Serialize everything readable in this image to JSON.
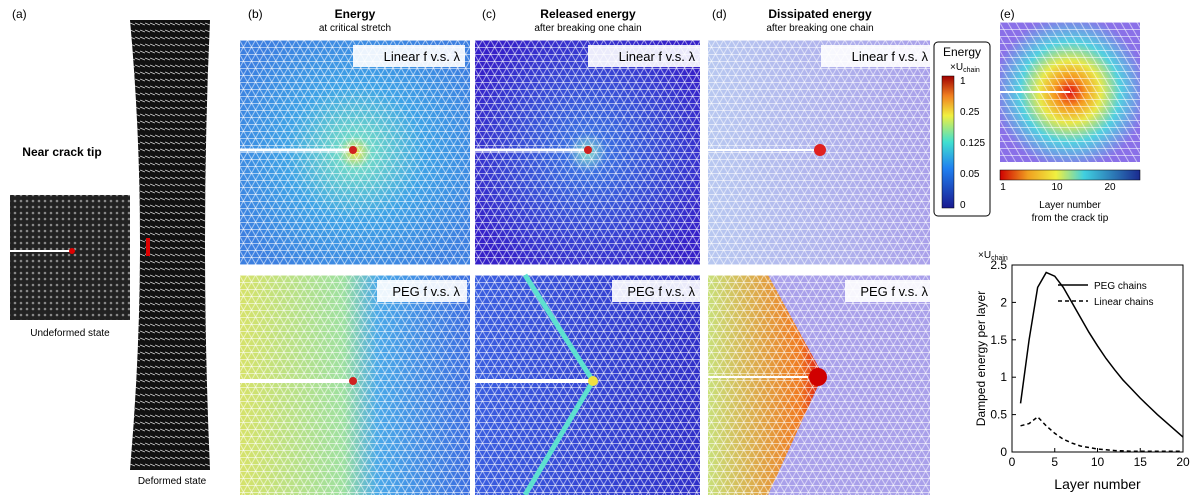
{
  "panel_labels": [
    "(a)",
    "(b)",
    "(c)",
    "(d)",
    "(e)"
  ],
  "panel_a": {
    "title": "Near crack tip",
    "undeformed": "Undeformed state",
    "deformed": "Deformed state"
  },
  "columns": [
    {
      "title": "Energy",
      "subtitle": "at critical stretch"
    },
    {
      "title": "Released energy",
      "subtitle": "after breaking one chain"
    },
    {
      "title": "Dissipated energy",
      "subtitle": "after breaking one chain"
    }
  ],
  "row_labels": [
    "Linear f v.s. λ",
    "PEG f v.s. λ"
  ],
  "energy_colorbar": {
    "title": "Energy",
    "unit_main": "×U",
    "unit_sub": "chain",
    "ticks": [
      "1",
      "0.25",
      "0.125",
      "0.05",
      "0"
    ]
  },
  "layer_colorbar": {
    "ticks": [
      "1",
      "10",
      "20"
    ],
    "label_1": "Layer number",
    "label_2": "from the crack tip"
  },
  "chart_data": {
    "type": "line",
    "unit_main": "×U",
    "unit_sub": "chain",
    "xlabel": "Layer number",
    "ylabel": "Damped energy per layer",
    "x": [
      1,
      2,
      3,
      4,
      5,
      6,
      7,
      8,
      9,
      10,
      11,
      12,
      13,
      14,
      15,
      16,
      17,
      18,
      19,
      20
    ],
    "series": [
      {
        "name": "PEG chains",
        "color": "#000000",
        "linestyle": "solid",
        "values": [
          0.65,
          1.5,
          2.2,
          2.4,
          2.35,
          2.2,
          2.0,
          1.8,
          1.6,
          1.42,
          1.25,
          1.1,
          0.96,
          0.84,
          0.72,
          0.61,
          0.5,
          0.4,
          0.3,
          0.2
        ]
      },
      {
        "name": "Linear chains",
        "color": "#000000",
        "linestyle": "dashed",
        "values": [
          0.35,
          0.38,
          0.47,
          0.35,
          0.25,
          0.17,
          0.12,
          0.08,
          0.06,
          0.04,
          0.03,
          0.02,
          0.015,
          0.01,
          0.01,
          0.01,
          0.01,
          0.01,
          0.01,
          0.01
        ]
      }
    ],
    "xlim": [
      0,
      20
    ],
    "xticks": [
      0,
      5,
      10,
      15,
      20
    ],
    "ylim": [
      0,
      2.5
    ],
    "yticks": [
      0,
      0.5,
      1,
      1.5,
      2,
      2.5
    ],
    "legend": "upper right"
  }
}
